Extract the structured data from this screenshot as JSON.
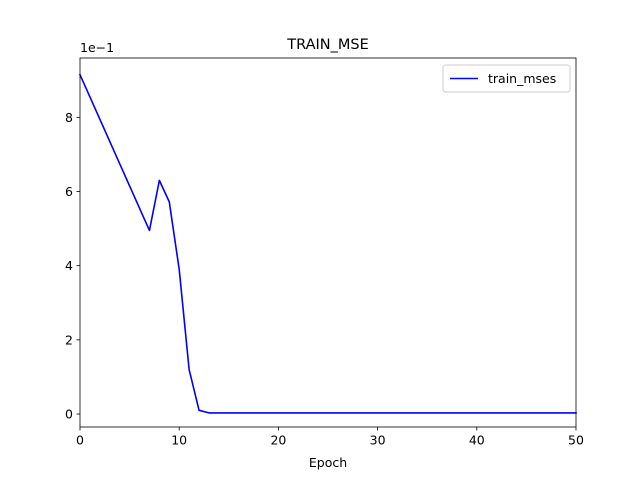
{
  "chart_data": {
    "type": "line",
    "title": "TRAIN_MSE",
    "xlabel": "Epoch",
    "ylabel": "",
    "scale_label": "1e−1",
    "xlim": [
      0,
      50
    ],
    "ylim": [
      -0.35,
      9.6
    ],
    "xticks": [
      0,
      10,
      20,
      30,
      40,
      50
    ],
    "yticks": [
      0,
      2,
      4,
      6,
      8
    ],
    "grid": false,
    "legend_position": "top-right",
    "series": [
      {
        "name": "train_mses",
        "color": "#0000ff",
        "x": [
          0,
          1,
          2,
          3,
          4,
          5,
          6,
          7,
          8,
          9,
          10,
          11,
          12,
          13,
          14,
          15,
          16,
          17,
          18,
          19,
          20,
          21,
          22,
          23,
          24,
          25,
          26,
          27,
          28,
          29,
          30,
          31,
          32,
          33,
          34,
          35,
          36,
          37,
          38,
          39,
          40,
          41,
          42,
          43,
          44,
          45,
          46,
          47,
          48,
          49,
          50
        ],
        "y": [
          9.15,
          8.55,
          7.95,
          7.35,
          6.75,
          6.15,
          5.55,
          4.95,
          6.3,
          5.72,
          3.9,
          1.2,
          0.1,
          0.03,
          0.03,
          0.03,
          0.03,
          0.03,
          0.03,
          0.03,
          0.03,
          0.03,
          0.03,
          0.03,
          0.03,
          0.03,
          0.03,
          0.03,
          0.03,
          0.03,
          0.03,
          0.03,
          0.03,
          0.03,
          0.03,
          0.03,
          0.03,
          0.03,
          0.03,
          0.03,
          0.03,
          0.03,
          0.03,
          0.03,
          0.03,
          0.03,
          0.03,
          0.03,
          0.03,
          0.03,
          0.03
        ]
      }
    ]
  }
}
